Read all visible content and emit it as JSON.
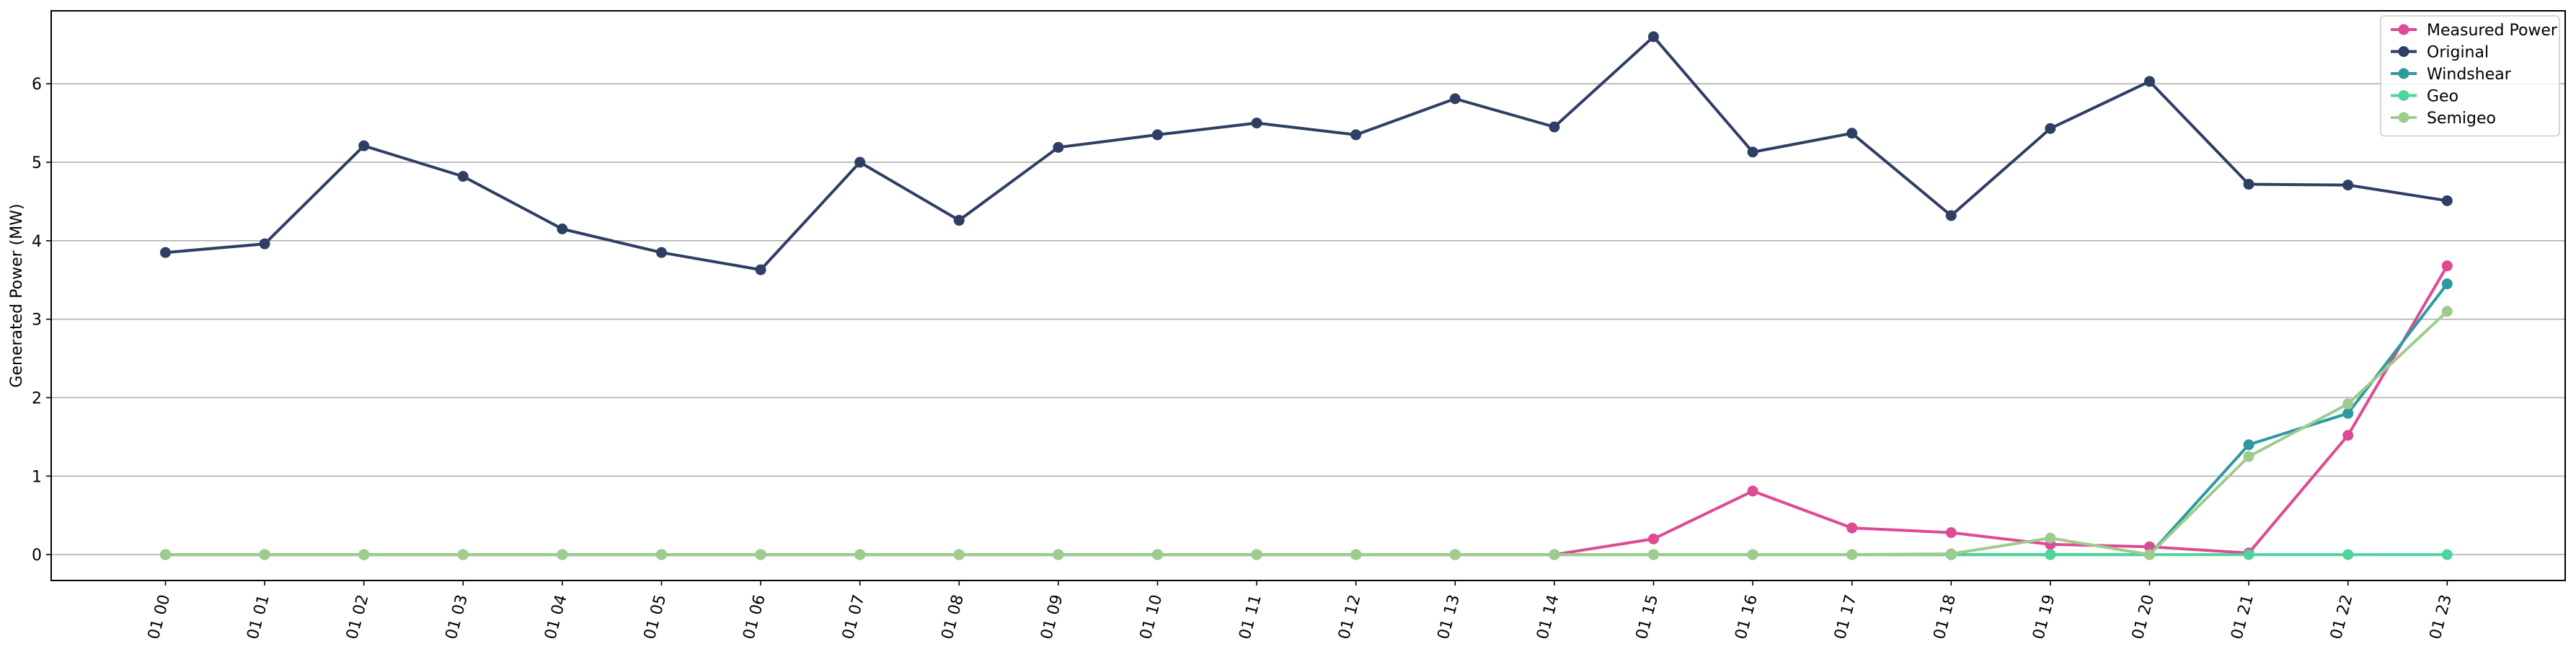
{
  "chart_data": {
    "type": "line",
    "title": "",
    "xlabel": "",
    "ylabel": "Generated Power (MW)",
    "ylim": [
      -0.33,
      6.93
    ],
    "yticks": [
      0,
      1,
      2,
      3,
      4,
      5,
      6
    ],
    "grid": "horizontal",
    "legend_position": "top-right",
    "categories": [
      "01 00",
      "01 01",
      "01 02",
      "01 03",
      "01 04",
      "01 05",
      "01 06",
      "01 07",
      "01 08",
      "01 09",
      "01 10",
      "01 11",
      "01 12",
      "01 13",
      "01 14",
      "01 15",
      "01 16",
      "01 17",
      "01 18",
      "01 19",
      "01 20",
      "01 21",
      "01 22",
      "01 23"
    ],
    "series": [
      {
        "name": "Measured Power",
        "color": "#de4a94",
        "values": [
          0,
          0,
          0,
          0,
          0,
          0,
          0,
          0,
          0,
          0,
          0,
          0,
          0,
          0,
          0,
          0.2,
          0.81,
          0.34,
          0.28,
          0.13,
          0.1,
          0.02,
          1.52,
          3.68
        ]
      },
      {
        "name": "Original",
        "color": "#2e3f63",
        "values": [
          3.85,
          3.96,
          5.21,
          4.82,
          4.15,
          3.85,
          3.63,
          5.0,
          4.26,
          5.19,
          5.35,
          5.5,
          5.35,
          5.81,
          5.45,
          6.6,
          5.13,
          5.37,
          4.32,
          5.43,
          6.03,
          4.72,
          4.71,
          4.51
        ]
      },
      {
        "name": "Windshear",
        "color": "#2c9a9e",
        "values": [
          0,
          0,
          0,
          0,
          0,
          0,
          0,
          0,
          0,
          0,
          0,
          0,
          0,
          0,
          0,
          0,
          0,
          0,
          0,
          0,
          0,
          1.4,
          1.8,
          3.45
        ]
      },
      {
        "name": "Geo",
        "color": "#4fd49b",
        "values": [
          0,
          0,
          0,
          0,
          0,
          0,
          0,
          0,
          0,
          0,
          0,
          0,
          0,
          0,
          0,
          0,
          0,
          0,
          0,
          0,
          0,
          0,
          0,
          0
        ]
      },
      {
        "name": "Semigeo",
        "color": "#9ecb8e",
        "values": [
          0,
          0,
          0,
          0,
          0,
          0,
          0,
          0,
          0,
          0,
          0,
          0,
          0,
          0,
          0,
          0,
          0,
          0,
          0.01,
          0.21,
          0,
          1.25,
          1.92,
          3.1
        ]
      }
    ]
  }
}
